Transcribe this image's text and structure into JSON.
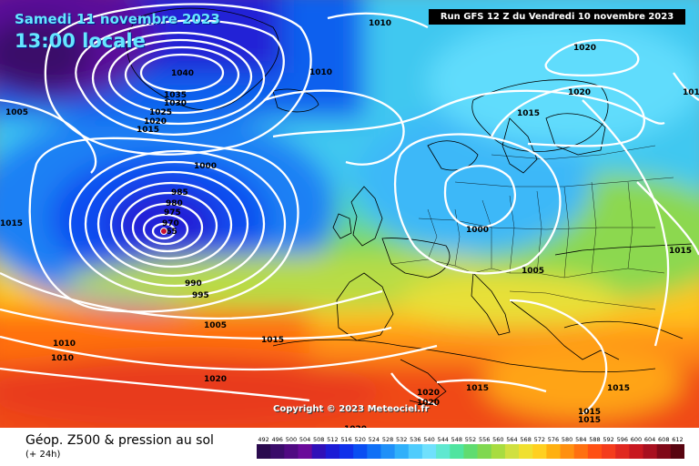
{
  "header": {
    "date": "Samedi 11 novembre 2023",
    "time": "13:00 locale",
    "run": "Run GFS 12 Z du Vendredi 10 novembre 2023"
  },
  "copyright": "Copyright © 2023 Meteociel.fr",
  "legend": {
    "title": "Géop. Z500 & pression au sol",
    "subtitle": "(+ 24h)",
    "scale_values": [
      "492",
      "496",
      "500",
      "504",
      "508",
      "512",
      "516",
      "520",
      "524",
      "528",
      "532",
      "536",
      "540",
      "544",
      "548",
      "552",
      "556",
      "560",
      "564",
      "568",
      "572",
      "576",
      "580",
      "584",
      "588",
      "592",
      "596",
      "600",
      "604",
      "608",
      "612"
    ],
    "scale_colors": [
      "#2a0a4e",
      "#3a0c6a",
      "#500a82",
      "#6a0a9a",
      "#3010b8",
      "#1c1cd6",
      "#1030ea",
      "#0a4ef2",
      "#1070f6",
      "#2090f8",
      "#30b0fa",
      "#50ccfc",
      "#70e0fc",
      "#60e8d0",
      "#50e4a0",
      "#60dc70",
      "#80d850",
      "#a8dc40",
      "#d0e040",
      "#f0e030",
      "#ffd020",
      "#ffb010",
      "#ff9010",
      "#ff7010",
      "#ff5014",
      "#f43c1c",
      "#e02820",
      "#c81820",
      "#a81020",
      "#800818",
      "#580410"
    ]
  },
  "isobar_labels": [
    {
      "text": "1010"
    },
    {
      "text": "1005"
    },
    {
      "text": "1040"
    },
    {
      "text": "1035"
    },
    {
      "text": "1030"
    },
    {
      "text": "1025"
    },
    {
      "text": "1020"
    },
    {
      "text": "1015"
    },
    {
      "text": "1010"
    },
    {
      "text": "1000"
    },
    {
      "text": "985"
    },
    {
      "text": "980"
    },
    {
      "text": "975"
    },
    {
      "text": "970"
    },
    {
      "text": "965"
    },
    {
      "text": "990"
    },
    {
      "text": "995"
    },
    {
      "text": "1005"
    },
    {
      "text": "1015"
    },
    {
      "text": "1010"
    },
    {
      "text": "1010"
    },
    {
      "text": "1020"
    },
    {
      "text": "1020"
    },
    {
      "text": "1020"
    },
    {
      "text": "1015"
    },
    {
      "text": "1000"
    },
    {
      "text": "1005"
    },
    {
      "text": "1015"
    },
    {
      "text": "1015"
    },
    {
      "text": "1020"
    },
    {
      "text": "1020"
    },
    {
      "text": "1015"
    },
    {
      "text": "1015"
    },
    {
      "text": "1015"
    },
    {
      "text": "1020"
    },
    {
      "text": "1015"
    },
    {
      "text": "101"
    }
  ]
}
